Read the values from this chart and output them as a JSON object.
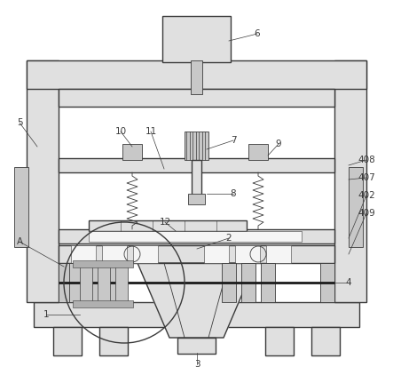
{
  "bg_color": "#ffffff",
  "lc": "#3a3a3a",
  "lw": 1.0,
  "tlw": 0.6,
  "fs": 7.5,
  "gray1": "#c8c8c8",
  "gray2": "#e0e0e0",
  "gray3": "#b0b0b0",
  "white": "#f5f5f5"
}
